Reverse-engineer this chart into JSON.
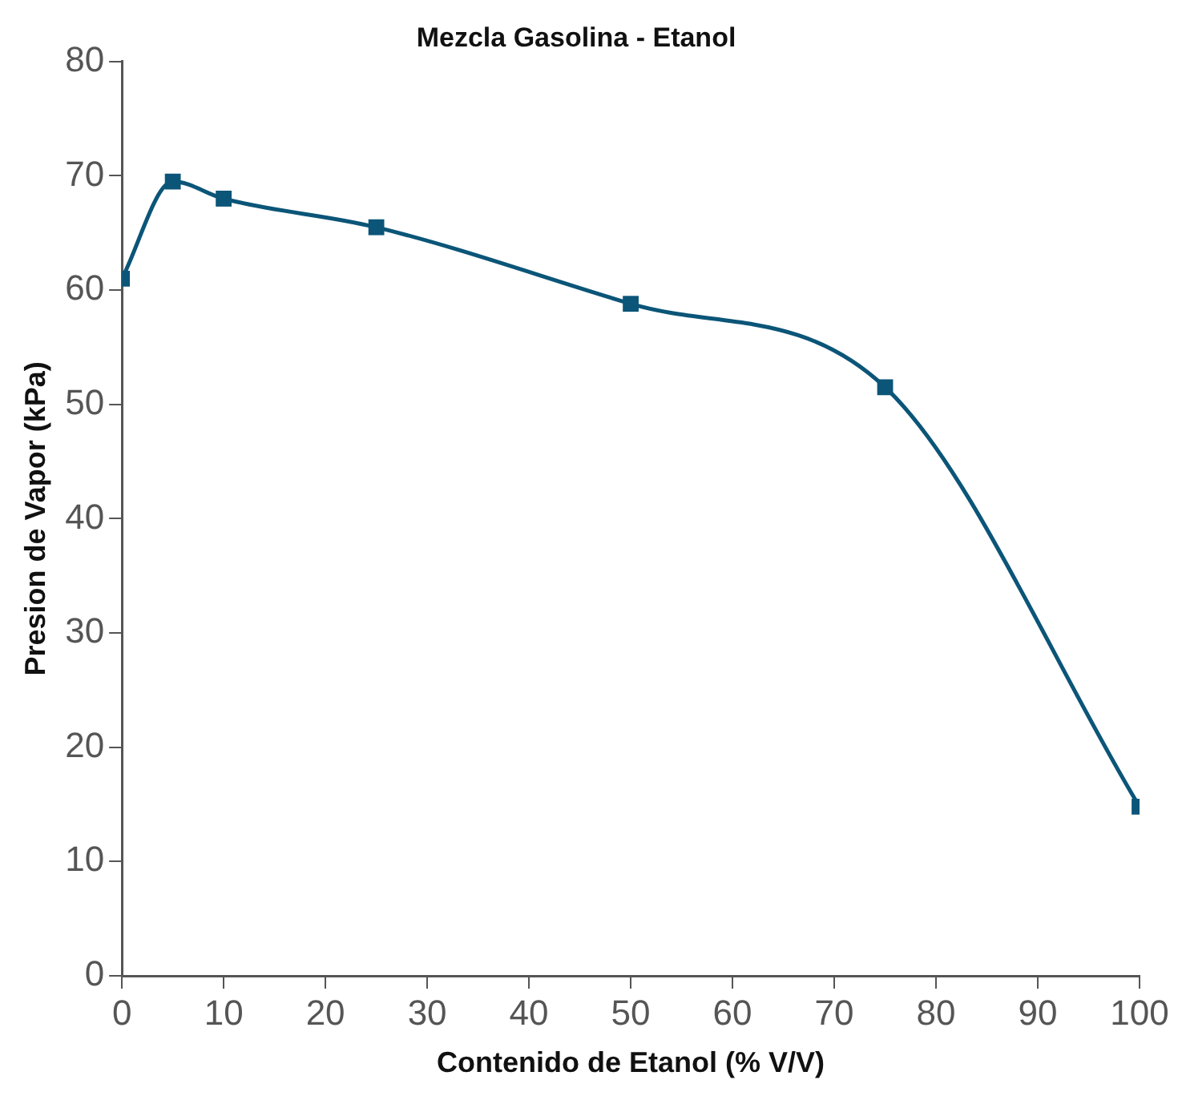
{
  "chart_data": {
    "type": "line",
    "title": "Mezcla Gasolina - Etanol",
    "xlabel": "Contenido de Etanol (% V/V)",
    "ylabel": "Presion de Vapor (kPa)",
    "x": [
      0,
      5,
      10,
      25,
      50,
      75,
      100
    ],
    "series": [
      {
        "color": "#0b5578",
        "values": [
          61,
          69.5,
          68,
          65.5,
          58.8,
          51.5,
          14.8
        ]
      }
    ],
    "xlim": [
      0,
      100
    ],
    "xticks": [
      0,
      10,
      20,
      30,
      40,
      50,
      60,
      70,
      80,
      90,
      100
    ],
    "ylim": [
      0,
      80
    ],
    "yticks": [
      0,
      10,
      20,
      30,
      40,
      50,
      60,
      70,
      80
    ],
    "grid": false,
    "legend": false,
    "marker": "square",
    "line_style": "solid"
  }
}
